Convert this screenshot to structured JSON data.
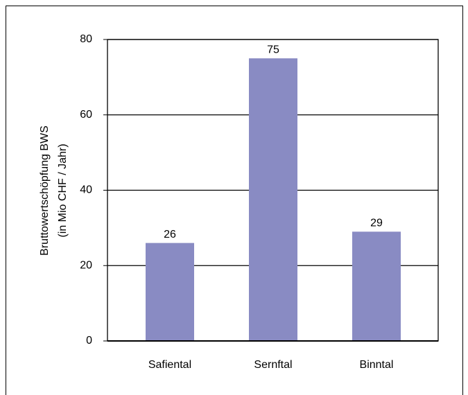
{
  "chart_data": {
    "type": "bar",
    "y_label": [
      "Bruttowertschöpfung BWS",
      "(in Mio CHF / Jahr)"
    ],
    "categories": [
      "Safiental",
      "Sernftal",
      "Binntal"
    ],
    "values": [
      26,
      75,
      29
    ],
    "color": "#898bc3",
    "ylim": [
      0,
      80
    ],
    "yticks": [
      0,
      20,
      40,
      60,
      80
    ],
    "grid": true
  }
}
